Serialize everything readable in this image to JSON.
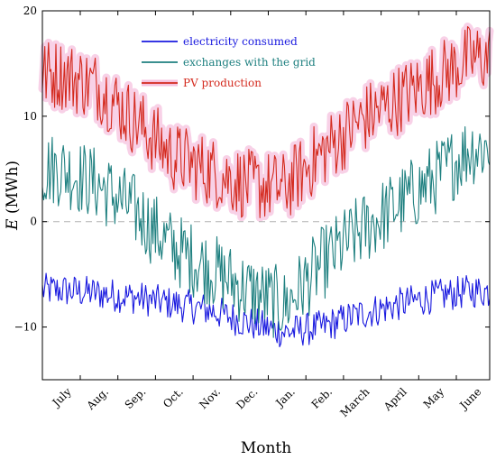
{
  "chart_data": {
    "type": "line",
    "xlabel": "Month",
    "ylabel_var": "E",
    "ylabel_unit": " (MWh)",
    "ylim": [
      -15,
      20
    ],
    "yticks": [
      -10,
      0,
      10,
      20
    ],
    "ytick_labels": [
      "−10",
      "0",
      "10",
      "20"
    ],
    "zero_reference_line": true,
    "categories": [
      "July",
      "Aug.",
      "Sep.",
      "Oct.",
      "Nov.",
      "Dec.",
      "Jan.",
      "Feb.",
      "March",
      "April",
      "May",
      "June"
    ],
    "legend_position": "top-center",
    "series": [
      {
        "name": "electricity consumed",
        "color": "#1a1adf",
        "values": [
          -6.5,
          -6.8,
          -7.2,
          -7.8,
          -8.4,
          -9.6,
          -10.5,
          -10.0,
          -8.8,
          -7.9,
          -7.1,
          -6.6
        ]
      },
      {
        "name": "exchanges with the grid",
        "color": "#1f8080",
        "values": [
          5.0,
          3.5,
          1.0,
          -2.5,
          -4.5,
          -6.5,
          -8.0,
          -4.0,
          -1.0,
          1.5,
          4.0,
          7.0
        ]
      },
      {
        "name": "PV production",
        "color": "#d42a1e",
        "values": [
          14.0,
          12.8,
          9.5,
          6.2,
          4.8,
          3.5,
          3.2,
          6.5,
          9.5,
          11.5,
          13.5,
          15.5
        ]
      }
    ]
  }
}
